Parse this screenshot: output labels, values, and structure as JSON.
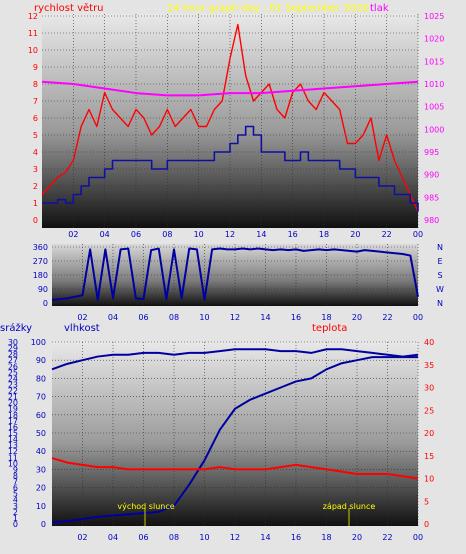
{
  "header": {
    "left": "rychlost větru",
    "center": "24 hour graph day : 01 September 2020",
    "right": "tlak"
  },
  "lower_header": {
    "precip": "srážky",
    "humidity": "vlhkost",
    "temperature": "teplota"
  },
  "annotations": {
    "sunrise": "východ slunce",
    "sunset": "západ slunce"
  },
  "colors": {
    "wind": "#ff0000",
    "gust_avg": "#1010a0",
    "pressure": "#ff00ff",
    "direction": "#0000a0",
    "humidity": "#0000a0",
    "rain": "#0000a0",
    "temperature": "#ff0000"
  },
  "chart_data": [
    {
      "type": "line",
      "x_tick_labels": [
        "02",
        "04",
        "06",
        "08",
        "10",
        "12",
        "14",
        "16",
        "18",
        "20",
        "22",
        "00"
      ],
      "left_axis": {
        "ticks": [
          "0",
          "1",
          "2",
          "3",
          "4",
          "5",
          "6",
          "7",
          "8",
          "9",
          "10",
          "11",
          "12"
        ],
        "ylim": [
          0,
          12
        ]
      },
      "right_axis": {
        "ticks": [
          "980",
          "985",
          "990",
          "995",
          "1000",
          "1005",
          "1010",
          "1015",
          "1020",
          "1025"
        ],
        "ylim": [
          980,
          1025
        ]
      },
      "series": [
        {
          "axis": "left",
          "x": [
            0,
            0.5,
            1,
            1.5,
            2,
            2.5,
            3,
            3.5,
            4,
            4.5,
            5,
            5.5,
            6,
            6.5,
            7,
            7.5,
            8,
            8.5,
            9,
            9.5,
            10,
            10.5,
            11,
            11.5,
            12,
            12.5,
            13,
            13.5,
            14,
            14.5,
            15,
            15.5,
            16,
            16.5,
            17,
            17.5,
            18,
            18.5,
            19,
            19.5,
            20,
            20.5,
            21,
            21.5,
            22,
            22.5,
            23,
            23.5,
            24
          ],
          "y": [
            1.5,
            2.0,
            2.5,
            2.8,
            3.5,
            5.5,
            6.5,
            5.5,
            7.5,
            6.5,
            6.0,
            5.5,
            6.5,
            6.0,
            5.0,
            5.5,
            6.5,
            5.5,
            6.0,
            6.5,
            5.5,
            5.5,
            6.5,
            7.0,
            9.5,
            11.5,
            8.5,
            7.0,
            7.5,
            8.0,
            6.5,
            6.0,
            7.5,
            8.0,
            7.0,
            6.5,
            7.5,
            7.0,
            6.5,
            4.5,
            4.5,
            5.0,
            6.0,
            3.5,
            5.0,
            3.5,
            2.5,
            1.5,
            0.5
          ]
        },
        {
          "axis": "left",
          "x": [
            0,
            0.5,
            1,
            1.5,
            2,
            2.5,
            3,
            3.5,
            4,
            4.5,
            5,
            5.5,
            6,
            6.5,
            7,
            7.5,
            8,
            8.5,
            9,
            9.5,
            10,
            10.5,
            11,
            11.5,
            12,
            12.5,
            13,
            13.5,
            14,
            14.5,
            15,
            15.5,
            16,
            16.5,
            17,
            17.5,
            18,
            18.5,
            19,
            19.5,
            20,
            20.5,
            21,
            21.5,
            22,
            22.5,
            23,
            23.5,
            24
          ],
          "y": [
            1.0,
            1.0,
            1.2,
            1.0,
            1.5,
            2.0,
            2.5,
            2.5,
            3.0,
            3.5,
            3.5,
            3.5,
            3.5,
            3.5,
            3.0,
            3.0,
            3.5,
            3.5,
            3.5,
            3.5,
            3.5,
            3.5,
            4.0,
            4.0,
            4.5,
            5.0,
            5.5,
            5.0,
            4.0,
            4.0,
            4.0,
            3.5,
            3.5,
            4.0,
            3.5,
            3.5,
            3.5,
            3.5,
            3.0,
            3.0,
            2.5,
            2.5,
            2.5,
            2.0,
            2.0,
            1.5,
            1.5,
            1.0,
            0.5
          ]
        },
        {
          "axis": "right",
          "x": [
            0,
            2,
            4,
            6,
            8,
            10,
            12,
            14,
            16,
            18,
            20,
            22,
            24
          ],
          "y": [
            1010.5,
            1010,
            1009,
            1008,
            1007.5,
            1007.5,
            1008,
            1008,
            1008.5,
            1009,
            1009.5,
            1010,
            1010.5
          ]
        }
      ]
    },
    {
      "type": "line",
      "x_tick_labels": [
        "02",
        "04",
        "06",
        "08",
        "10",
        "12",
        "14",
        "16",
        "18",
        "20",
        "22",
        "00"
      ],
      "left_axis": {
        "ticks": [
          "0",
          "90",
          "180",
          "270",
          "360"
        ],
        "ylim": [
          0,
          360
        ]
      },
      "right_axis": {
        "ticks": [
          "N",
          "W",
          "S",
          "E",
          "N"
        ]
      },
      "series": [
        {
          "axis": "left",
          "x": [
            0,
            0.5,
            1,
            1.5,
            2,
            2.5,
            3,
            3.5,
            4,
            4.5,
            5,
            5.5,
            6,
            6.5,
            7,
            7.5,
            8,
            8.5,
            9,
            9.5,
            10,
            10.5,
            11,
            11.5,
            12,
            12.5,
            13,
            13.5,
            14,
            14.5,
            15,
            15.5,
            16,
            16.5,
            17,
            17.5,
            18,
            18.5,
            19,
            19.5,
            20,
            20.5,
            21,
            21.5,
            22,
            22.5,
            23,
            23.5,
            24
          ],
          "y": [
            20,
            25,
            30,
            40,
            50,
            345,
            20,
            345,
            30,
            345,
            350,
            30,
            25,
            340,
            350,
            25,
            345,
            30,
            350,
            345,
            20,
            345,
            350,
            345,
            345,
            350,
            345,
            350,
            345,
            340,
            345,
            340,
            345,
            335,
            340,
            345,
            340,
            345,
            340,
            335,
            330,
            340,
            335,
            330,
            325,
            320,
            315,
            305,
            40
          ]
        }
      ]
    },
    {
      "type": "line",
      "x_tick_labels": [
        "02",
        "04",
        "06",
        "08",
        "10",
        "12",
        "14",
        "16",
        "18",
        "20",
        "22",
        "00"
      ],
      "left_axis": {
        "ticks": [
          "0",
          "1",
          "2",
          "3",
          "4",
          "5",
          "6",
          "7",
          "8",
          "9",
          "10",
          "11",
          "12",
          "13",
          "14",
          "15",
          "16",
          "17",
          "18",
          "19",
          "20",
          "21",
          "22",
          "23",
          "24",
          "25",
          "26",
          "27",
          "28",
          "29",
          "30"
        ],
        "ylim": [
          0,
          30
        ]
      },
      "middle_axis": {
        "ticks": [
          "0",
          "10",
          "20",
          "30",
          "40",
          "50",
          "60",
          "70",
          "80",
          "90",
          "100"
        ],
        "ylim": [
          0,
          100
        ]
      },
      "right_axis": {
        "ticks": [
          "0",
          "5",
          "10",
          "15",
          "20",
          "25",
          "30",
          "35",
          "40"
        ],
        "ylim": [
          0,
          40
        ]
      },
      "series": [
        {
          "axis": "middle",
          "x": [
            0,
            1,
            2,
            3,
            4,
            5,
            6,
            7,
            8,
            9,
            10,
            11,
            12,
            13,
            14,
            15,
            16,
            17,
            18,
            19,
            20,
            21,
            22,
            23,
            24
          ],
          "y": [
            85,
            88,
            90,
            92,
            93,
            93,
            94,
            94,
            93,
            94,
            94,
            95,
            96,
            96,
            96,
            95,
            95,
            94,
            96,
            96,
            95,
            94,
            93,
            92,
            93
          ]
        },
        {
          "axis": "left",
          "x": [
            0,
            1,
            2,
            3,
            4,
            5,
            6,
            7,
            8,
            9,
            10,
            11,
            12,
            13,
            14,
            15,
            16,
            17,
            18,
            19,
            20,
            21,
            22,
            23,
            24
          ],
          "y": [
            0.2,
            0.5,
            0.8,
            1.2,
            1.4,
            1.6,
            1.8,
            2.0,
            3.0,
            6.5,
            10.5,
            15.5,
            19.0,
            20.5,
            21.5,
            22.5,
            23.5,
            24.0,
            25.5,
            26.5,
            27.0,
            27.5,
            27.5,
            27.5,
            27.5
          ]
        },
        {
          "axis": "right",
          "x": [
            0,
            1,
            2,
            3,
            4,
            5,
            6,
            7,
            8,
            9,
            10,
            11,
            12,
            13,
            14,
            15,
            16,
            17,
            18,
            19,
            20,
            21,
            22,
            23,
            24
          ],
          "y": [
            14.5,
            13.5,
            13.0,
            12.5,
            12.5,
            12.0,
            12.0,
            12.0,
            12.0,
            12.0,
            12.0,
            12.5,
            12.0,
            12.0,
            12.0,
            12.5,
            13.0,
            12.5,
            12.0,
            11.5,
            11.0,
            11.0,
            11.0,
            10.5,
            10.0
          ]
        }
      ]
    }
  ]
}
